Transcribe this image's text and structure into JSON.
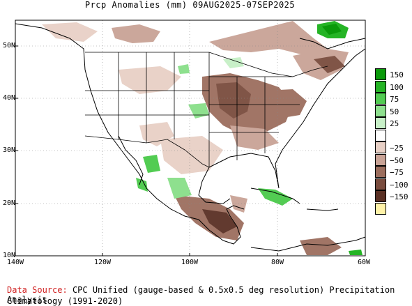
{
  "title": "Prcp Anomalies (mm) 09AUG2025-07SEP2025",
  "map": {
    "lat_labels": [
      "50N",
      "40N",
      "30N",
      "20N",
      "10N"
    ],
    "lon_labels": [
      "140W",
      "120W",
      "100W",
      "80W",
      "60W"
    ]
  },
  "legend": {
    "items": [
      {
        "label": "150",
        "color": "#0a9a0a"
      },
      {
        "label": "100",
        "color": "#25b425"
      },
      {
        "label": "75",
        "color": "#52cc52"
      },
      {
        "label": "50",
        "color": "#8ee08e"
      },
      {
        "label": "25",
        "color": "#c8f0c8"
      },
      {
        "label": "",
        "color": "#ffffff"
      },
      {
        "label": "−25",
        "color": "#e8d0c6"
      },
      {
        "label": "−50",
        "color": "#c9a396"
      },
      {
        "label": "−75",
        "color": "#9c6e5e"
      },
      {
        "label": "−100",
        "color": "#7a4c3e"
      },
      {
        "label": "−150",
        "color": "#5a3024"
      },
      {
        "label": "",
        "color": "#fff2a8"
      }
    ]
  },
  "footer": {
    "source_label": "Data Source:",
    "source_text": "CPC Unified (gauge-based & 0.5x0.5 deg resolution) Precipitation Analysis",
    "climatology": "Climatology (1991-2020)"
  }
}
